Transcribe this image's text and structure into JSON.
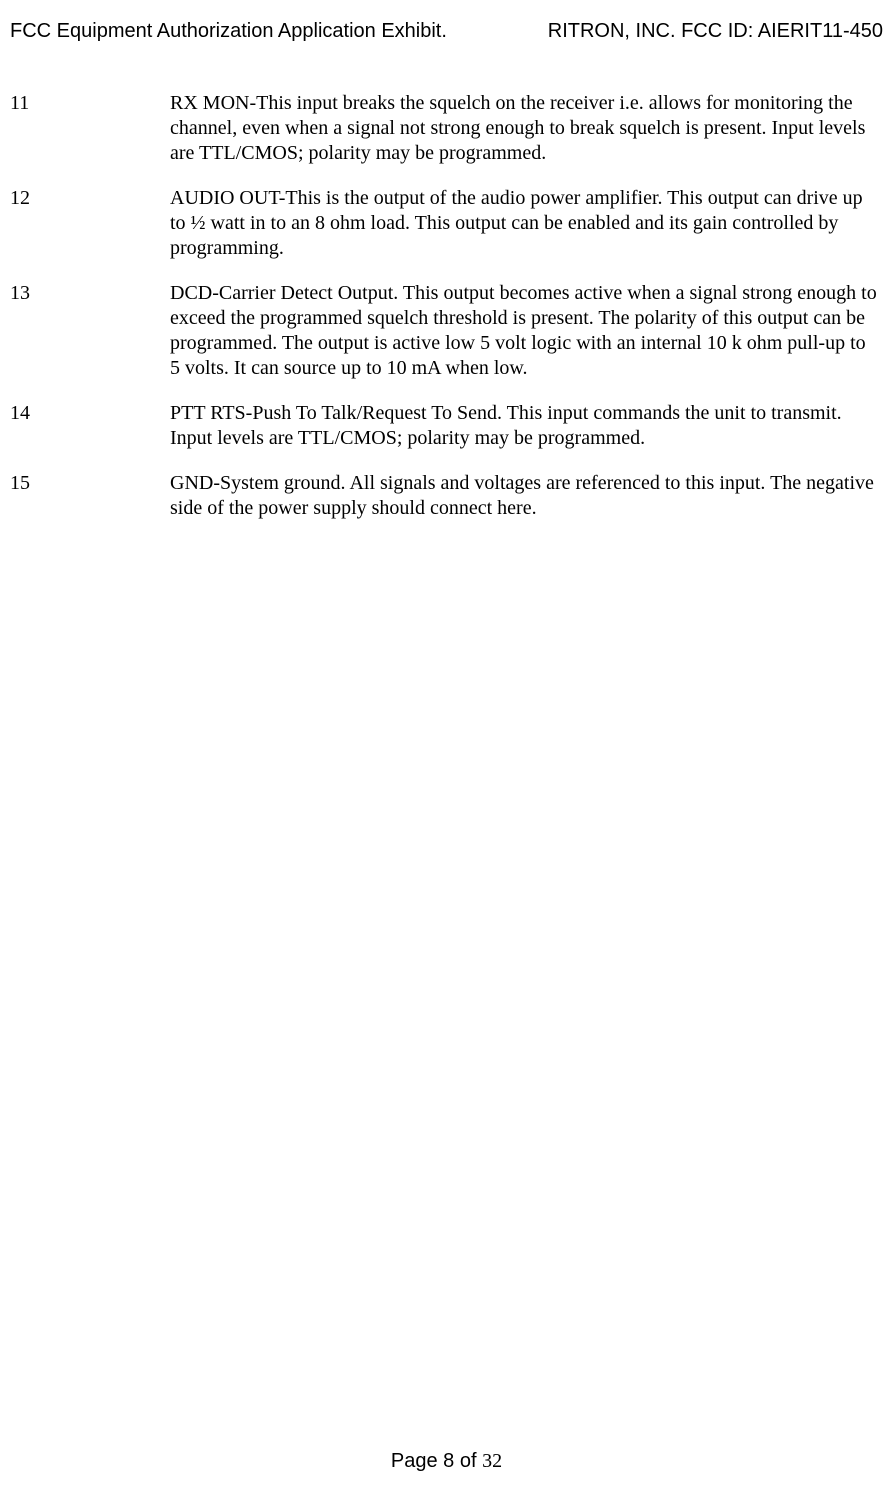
{
  "header": {
    "left": "FCC Equipment Authorization Application Exhibit.",
    "right": "RITRON, INC.  FCC ID:  AIERIT11-450"
  },
  "entries": [
    {
      "num": "11",
      "text": "RX MON-This input breaks the squelch on the receiver i.e. allows for monitoring the channel, even when a signal not strong enough to break squelch is present.  Input levels are TTL/CMOS; polarity may be programmed."
    },
    {
      "num": "12",
      "text": "AUDIO OUT-This is the output of the audio power amplifier.  This output can drive up to ½ watt in to an 8 ohm load.  This output can be enabled and its gain controlled by programming."
    },
    {
      "num": "13",
      "text": "DCD-Carrier Detect Output.  This output becomes active when a signal strong enough to exceed the programmed squelch threshold is present.  The polarity of this output can be programmed.  The output is active low 5 volt logic with an internal 10 k ohm pull-up to 5 volts.  It can source up to 10 mA when low."
    },
    {
      "num": "14",
      "text": "PTT RTS-Push To Talk/Request To Send.  This input commands the unit to transmit.  Input levels are TTL/CMOS; polarity may be programmed."
    },
    {
      "num": "15",
      "text": "GND-System ground.  All signals and voltages are referenced to this input.  The negative side of the power supply should connect here."
    }
  ],
  "footer": {
    "prefix": "Page 8 of ",
    "total": "32"
  }
}
